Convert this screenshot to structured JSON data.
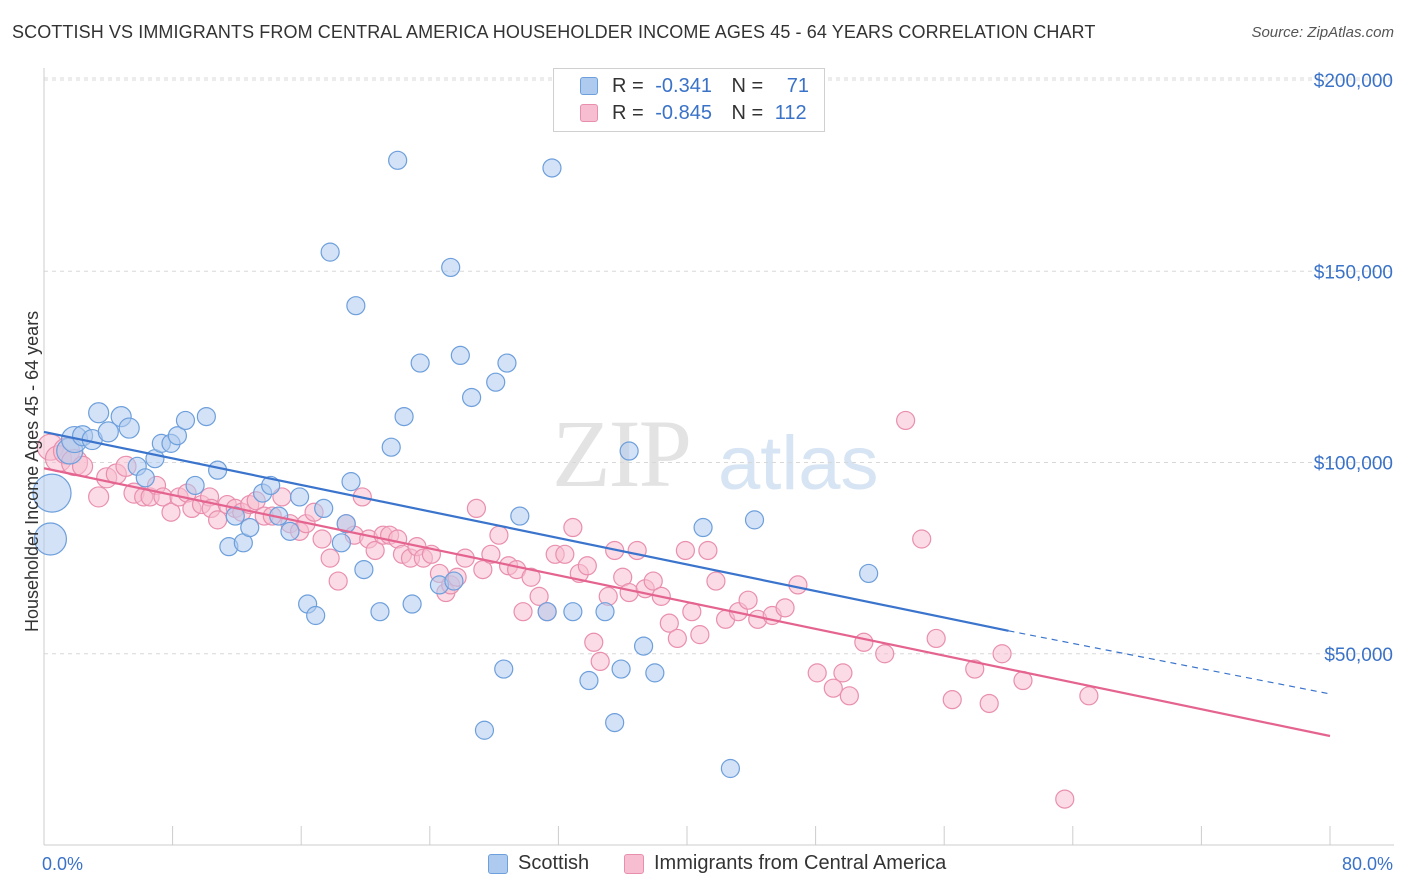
{
  "header": {
    "title": "SCOTTISH VS IMMIGRANTS FROM CENTRAL AMERICA HOUSEHOLDER INCOME AGES 45 - 64 YEARS CORRELATION CHART",
    "source": "Source: ZipAtlas.com"
  },
  "watermark": {
    "zip": "ZIP",
    "atlas": "atlas"
  },
  "legend_top": {
    "rows": [
      {
        "r_label": "R =",
        "r_value": "-0.341",
        "n_label": "N =",
        "n_value": "71"
      },
      {
        "r_label": "R =",
        "r_value": "-0.845",
        "n_label": "N =",
        "n_value": "112"
      }
    ]
  },
  "legend_bottom": {
    "items": [
      "Scottish",
      "Immigrants from Central America"
    ]
  },
  "colors": {
    "blue_fill": "#aecbef",
    "blue_stroke": "#6d9fdc",
    "blue_line": "#3a74cc",
    "pink_fill": "#f7bdd0",
    "pink_stroke": "#e98fae",
    "pink_line": "#e4648f",
    "tick_text": "#3a72c8",
    "grid": "#d8d8d8"
  },
  "chart_data": {
    "type": "scatter",
    "title": "SCOTTISH VS IMMIGRANTS FROM CENTRAL AMERICA HOUSEHOLDER INCOME AGES 45 - 64 YEARS CORRELATION CHART",
    "xlabel": "",
    "ylabel": "Householder Income Ages 45 - 64 years",
    "xlim": [
      0,
      80
    ],
    "ylim": [
      0,
      200000
    ],
    "x_tick_labels": [
      "0.0%",
      "80.0%"
    ],
    "y_ticks": [
      50000,
      100000,
      150000,
      200000
    ],
    "y_tick_labels": [
      "$50,000",
      "$100,000",
      "$150,000",
      "$200,000"
    ],
    "grid": true,
    "legend_position": "top-center",
    "series": [
      {
        "name": "Scottish",
        "r": -0.341,
        "n": 71,
        "trend": {
          "x": [
            0,
            60
          ],
          "y": [
            108000,
            56000
          ],
          "dashed_extension": {
            "x": [
              60,
              80
            ],
            "y": [
              56000,
              39500
            ]
          }
        },
        "points": [
          [
            0.5,
            92000
          ],
          [
            0.4,
            80000
          ],
          [
            1.6,
            103000
          ],
          [
            1.9,
            106000
          ],
          [
            2.4,
            107000
          ],
          [
            3.0,
            106000
          ],
          [
            3.4,
            113000
          ],
          [
            4.0,
            108000
          ],
          [
            4.8,
            112000
          ],
          [
            5.3,
            109000
          ],
          [
            5.8,
            99000
          ],
          [
            6.3,
            96000
          ],
          [
            6.9,
            101000
          ],
          [
            7.3,
            105000
          ],
          [
            7.9,
            105000
          ],
          [
            8.3,
            107000
          ],
          [
            8.8,
            111000
          ],
          [
            9.4,
            94000
          ],
          [
            10.1,
            112000
          ],
          [
            10.8,
            98000
          ],
          [
            11.5,
            78000
          ],
          [
            11.9,
            86000
          ],
          [
            12.4,
            79000
          ],
          [
            12.8,
            83000
          ],
          [
            13.6,
            92000
          ],
          [
            14.1,
            94000
          ],
          [
            14.6,
            86000
          ],
          [
            15.3,
            82000
          ],
          [
            15.9,
            91000
          ],
          [
            16.4,
            63000
          ],
          [
            16.9,
            60000
          ],
          [
            17.4,
            88000
          ],
          [
            17.8,
            155000
          ],
          [
            18.5,
            79000
          ],
          [
            18.8,
            84000
          ],
          [
            19.1,
            95000
          ],
          [
            19.4,
            141000
          ],
          [
            19.9,
            72000
          ],
          [
            20.9,
            61000
          ],
          [
            21.6,
            104000
          ],
          [
            22.0,
            179000
          ],
          [
            22.4,
            112000
          ],
          [
            22.9,
            63000
          ],
          [
            23.4,
            126000
          ],
          [
            24.6,
            68000
          ],
          [
            25.3,
            151000
          ],
          [
            25.5,
            69000
          ],
          [
            25.9,
            128000
          ],
          [
            26.6,
            117000
          ],
          [
            27.4,
            30000
          ],
          [
            28.1,
            121000
          ],
          [
            28.6,
            46000
          ],
          [
            28.8,
            126000
          ],
          [
            29.6,
            86000
          ],
          [
            31.3,
            61000
          ],
          [
            31.6,
            177000
          ],
          [
            32.9,
            61000
          ],
          [
            33.9,
            43000
          ],
          [
            34.9,
            61000
          ],
          [
            35.5,
            32000
          ],
          [
            35.9,
            46000
          ],
          [
            36.4,
            103000
          ],
          [
            37.3,
            52000
          ],
          [
            38.0,
            45000
          ],
          [
            41.0,
            83000
          ],
          [
            42.7,
            20000
          ],
          [
            44.2,
            85000
          ],
          [
            51.3,
            71000
          ]
        ]
      },
      {
        "name": "Immigrants from Central America",
        "r": -0.845,
        "n": 112,
        "trend": {
          "x": [
            0,
            80
          ],
          "y": [
            98500,
            28500
          ]
        },
        "points": [
          [
            0.4,
            104000
          ],
          [
            0.9,
            101000
          ],
          [
            1.4,
            103000
          ],
          [
            1.9,
            100000
          ],
          [
            2.4,
            99000
          ],
          [
            3.4,
            91000
          ],
          [
            3.9,
            96000
          ],
          [
            4.5,
            97000
          ],
          [
            5.1,
            99000
          ],
          [
            5.6,
            92000
          ],
          [
            6.2,
            91000
          ],
          [
            6.6,
            91000
          ],
          [
            7.0,
            94000
          ],
          [
            7.4,
            91000
          ],
          [
            7.9,
            87000
          ],
          [
            8.4,
            91000
          ],
          [
            8.9,
            92000
          ],
          [
            9.2,
            88000
          ],
          [
            9.8,
            89000
          ],
          [
            10.3,
            91000
          ],
          [
            10.4,
            88000
          ],
          [
            10.8,
            85000
          ],
          [
            11.4,
            89000
          ],
          [
            11.9,
            88000
          ],
          [
            12.3,
            87000
          ],
          [
            12.8,
            89000
          ],
          [
            13.2,
            90000
          ],
          [
            13.7,
            86000
          ],
          [
            14.2,
            86000
          ],
          [
            14.8,
            91000
          ],
          [
            15.3,
            84000
          ],
          [
            15.9,
            82000
          ],
          [
            16.3,
            84000
          ],
          [
            16.8,
            87000
          ],
          [
            17.3,
            80000
          ],
          [
            17.8,
            75000
          ],
          [
            18.3,
            69000
          ],
          [
            18.8,
            84000
          ],
          [
            19.3,
            81000
          ],
          [
            19.8,
            91000
          ],
          [
            20.2,
            80000
          ],
          [
            20.6,
            77000
          ],
          [
            21.1,
            81000
          ],
          [
            21.5,
            81000
          ],
          [
            22.0,
            80000
          ],
          [
            22.3,
            76000
          ],
          [
            22.8,
            75000
          ],
          [
            23.2,
            78000
          ],
          [
            23.6,
            75000
          ],
          [
            24.1,
            76000
          ],
          [
            24.6,
            71000
          ],
          [
            25.0,
            66000
          ],
          [
            25.3,
            68000
          ],
          [
            25.7,
            70000
          ],
          [
            26.2,
            75000
          ],
          [
            26.9,
            88000
          ],
          [
            27.3,
            72000
          ],
          [
            27.8,
            76000
          ],
          [
            28.3,
            81000
          ],
          [
            28.9,
            73000
          ],
          [
            29.4,
            72000
          ],
          [
            29.8,
            61000
          ],
          [
            30.3,
            70000
          ],
          [
            30.8,
            65000
          ],
          [
            31.3,
            61000
          ],
          [
            31.8,
            76000
          ],
          [
            32.4,
            76000
          ],
          [
            32.9,
            83000
          ],
          [
            33.3,
            71000
          ],
          [
            33.8,
            73000
          ],
          [
            34.2,
            53000
          ],
          [
            34.6,
            48000
          ],
          [
            35.1,
            65000
          ],
          [
            35.5,
            77000
          ],
          [
            36.0,
            70000
          ],
          [
            36.4,
            66000
          ],
          [
            36.9,
            77000
          ],
          [
            37.4,
            67000
          ],
          [
            37.9,
            69000
          ],
          [
            38.4,
            65000
          ],
          [
            38.9,
            58000
          ],
          [
            39.4,
            54000
          ],
          [
            39.9,
            77000
          ],
          [
            40.3,
            61000
          ],
          [
            40.8,
            55000
          ],
          [
            41.3,
            77000
          ],
          [
            41.8,
            69000
          ],
          [
            42.4,
            59000
          ],
          [
            43.2,
            61000
          ],
          [
            43.8,
            64000
          ],
          [
            44.4,
            59000
          ],
          [
            45.3,
            60000
          ],
          [
            46.1,
            62000
          ],
          [
            46.9,
            68000
          ],
          [
            48.1,
            45000
          ],
          [
            49.1,
            41000
          ],
          [
            49.7,
            45000
          ],
          [
            50.1,
            39000
          ],
          [
            51.0,
            53000
          ],
          [
            52.3,
            50000
          ],
          [
            53.6,
            111000
          ],
          [
            54.6,
            80000
          ],
          [
            55.5,
            54000
          ],
          [
            56.5,
            38000
          ],
          [
            57.9,
            46000
          ],
          [
            58.8,
            37000
          ],
          [
            59.6,
            50000
          ],
          [
            60.9,
            43000
          ],
          [
            63.5,
            12000
          ],
          [
            65.0,
            39000
          ]
        ]
      }
    ]
  }
}
